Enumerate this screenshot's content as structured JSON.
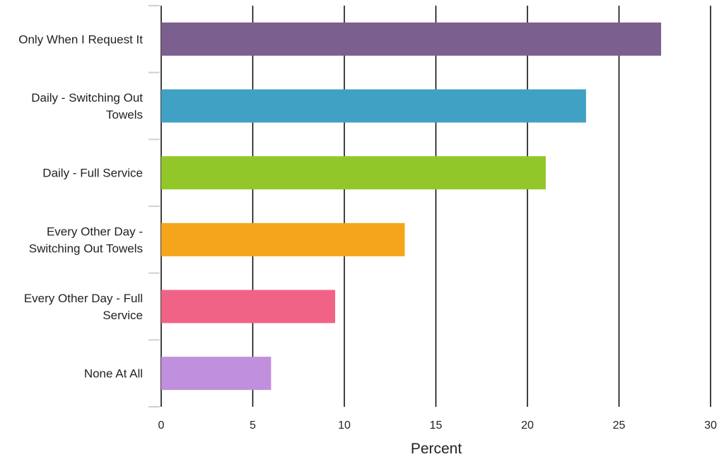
{
  "chart_data": {
    "type": "bar",
    "orientation": "horizontal",
    "categories": [
      "Only When I Request It",
      "Daily - Switching Out Towels",
      "Daily - Full Service",
      "Every Other Day - Switching Out Towels",
      "Every Other Day - Full Service",
      "None At All"
    ],
    "category_label_lines": [
      [
        "Only When I Request It"
      ],
      [
        "Daily - Switching Out",
        "Towels"
      ],
      [
        "Daily - Full Service"
      ],
      [
        "Every Other Day -",
        "Switching Out Towels"
      ],
      [
        "Every Other Day - Full",
        "Service"
      ],
      [
        "None At All"
      ]
    ],
    "values": [
      27.3,
      23.2,
      21.0,
      13.3,
      9.5,
      6.0
    ],
    "colors": [
      "#7B5F8E",
      "#40A1C4",
      "#92C729",
      "#F5A51B",
      "#F06386",
      "#C08FDD"
    ],
    "xlabel": "Percent",
    "ylabel": "",
    "xlim": [
      0,
      30
    ],
    "xticks": [
      "0",
      "5",
      "10",
      "15",
      "20",
      "25",
      "30"
    ],
    "grid": "vertical",
    "legend": "none"
  }
}
